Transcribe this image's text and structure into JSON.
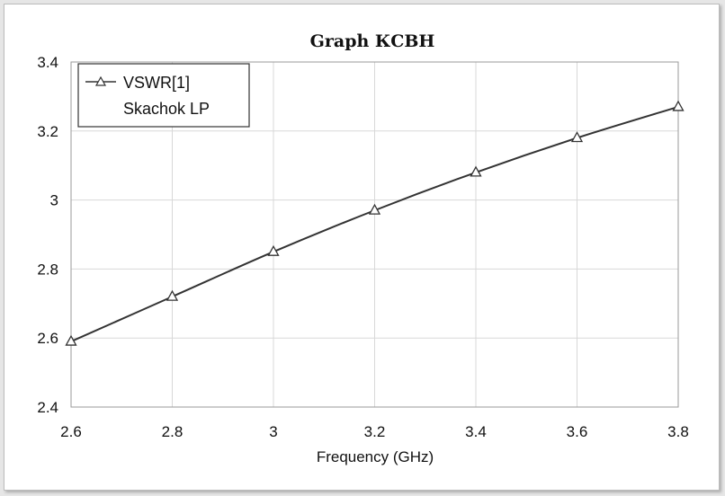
{
  "chart_data": {
    "type": "line",
    "title": "Graph КСВН",
    "xlabel": "Frequency (GHz)",
    "ylabel": "",
    "xlim": [
      2.6,
      3.8
    ],
    "ylim": [
      2.4,
      3.4
    ],
    "x_ticks": [
      "2.6",
      "2.8",
      "3",
      "3.2",
      "3.4",
      "3.6",
      "3.8"
    ],
    "y_ticks": [
      "2.4",
      "2.6",
      "2.8",
      "3",
      "3.2",
      "3.4"
    ],
    "grid": true,
    "legend_position": "top-left",
    "legend": {
      "label": "VSWR[1]",
      "sublabel": "Skachok LP"
    },
    "series": [
      {
        "name": "VSWR[1]",
        "marker": "triangle",
        "color": "#333333",
        "x": [
          2.6,
          2.8,
          3.0,
          3.2,
          3.4,
          3.6,
          3.8
        ],
        "y": [
          2.59,
          2.72,
          2.85,
          2.97,
          3.08,
          3.18,
          3.27
        ]
      }
    ]
  }
}
